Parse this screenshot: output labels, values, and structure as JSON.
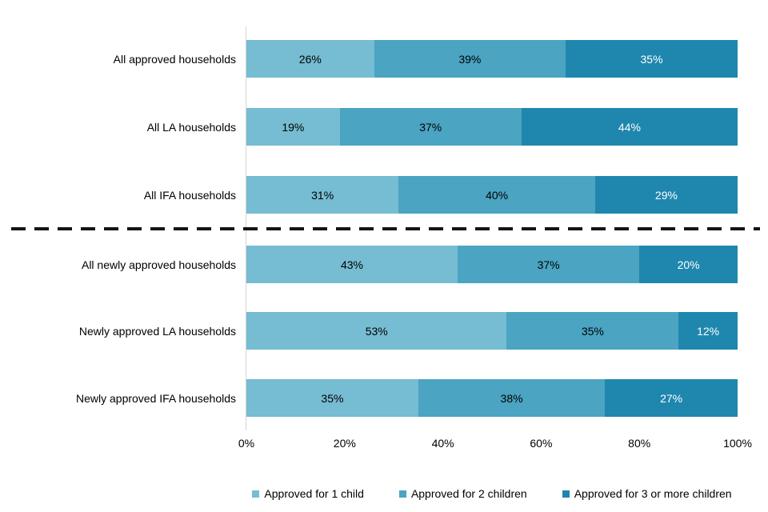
{
  "chart_data": {
    "type": "bar",
    "orientation": "horizontal",
    "stacked": true,
    "title": "",
    "xlabel": "",
    "ylabel": "",
    "xlim": [
      0,
      100
    ],
    "grid": false,
    "value_suffix": "%",
    "categories": [
      "All approved households",
      "All LA households",
      "All IFA households",
      "All newly approved households",
      "Newly approved LA households",
      "Newly approved IFA households"
    ],
    "series": [
      {
        "name": "Approved for 1 child",
        "color": "#76BCD2",
        "label_color": "#000000",
        "values": [
          26,
          19,
          31,
          43,
          53,
          35
        ]
      },
      {
        "name": "Approved for 2 children",
        "color": "#4AA4C2",
        "label_color": "#000000",
        "values": [
          39,
          37,
          40,
          37,
          35,
          38
        ]
      },
      {
        "name": "Approved for 3 or more children",
        "color": "#1F87AE",
        "label_color": "#FFFFFF",
        "values": [
          35,
          44,
          29,
          20,
          12,
          27
        ]
      }
    ],
    "x_ticks": [
      "0%",
      "20%",
      "40%",
      "60%",
      "80%",
      "100%"
    ],
    "separator": {
      "after_category_index": 2,
      "style": "dashed",
      "color": "#141414"
    },
    "legend_position": "bottom"
  }
}
